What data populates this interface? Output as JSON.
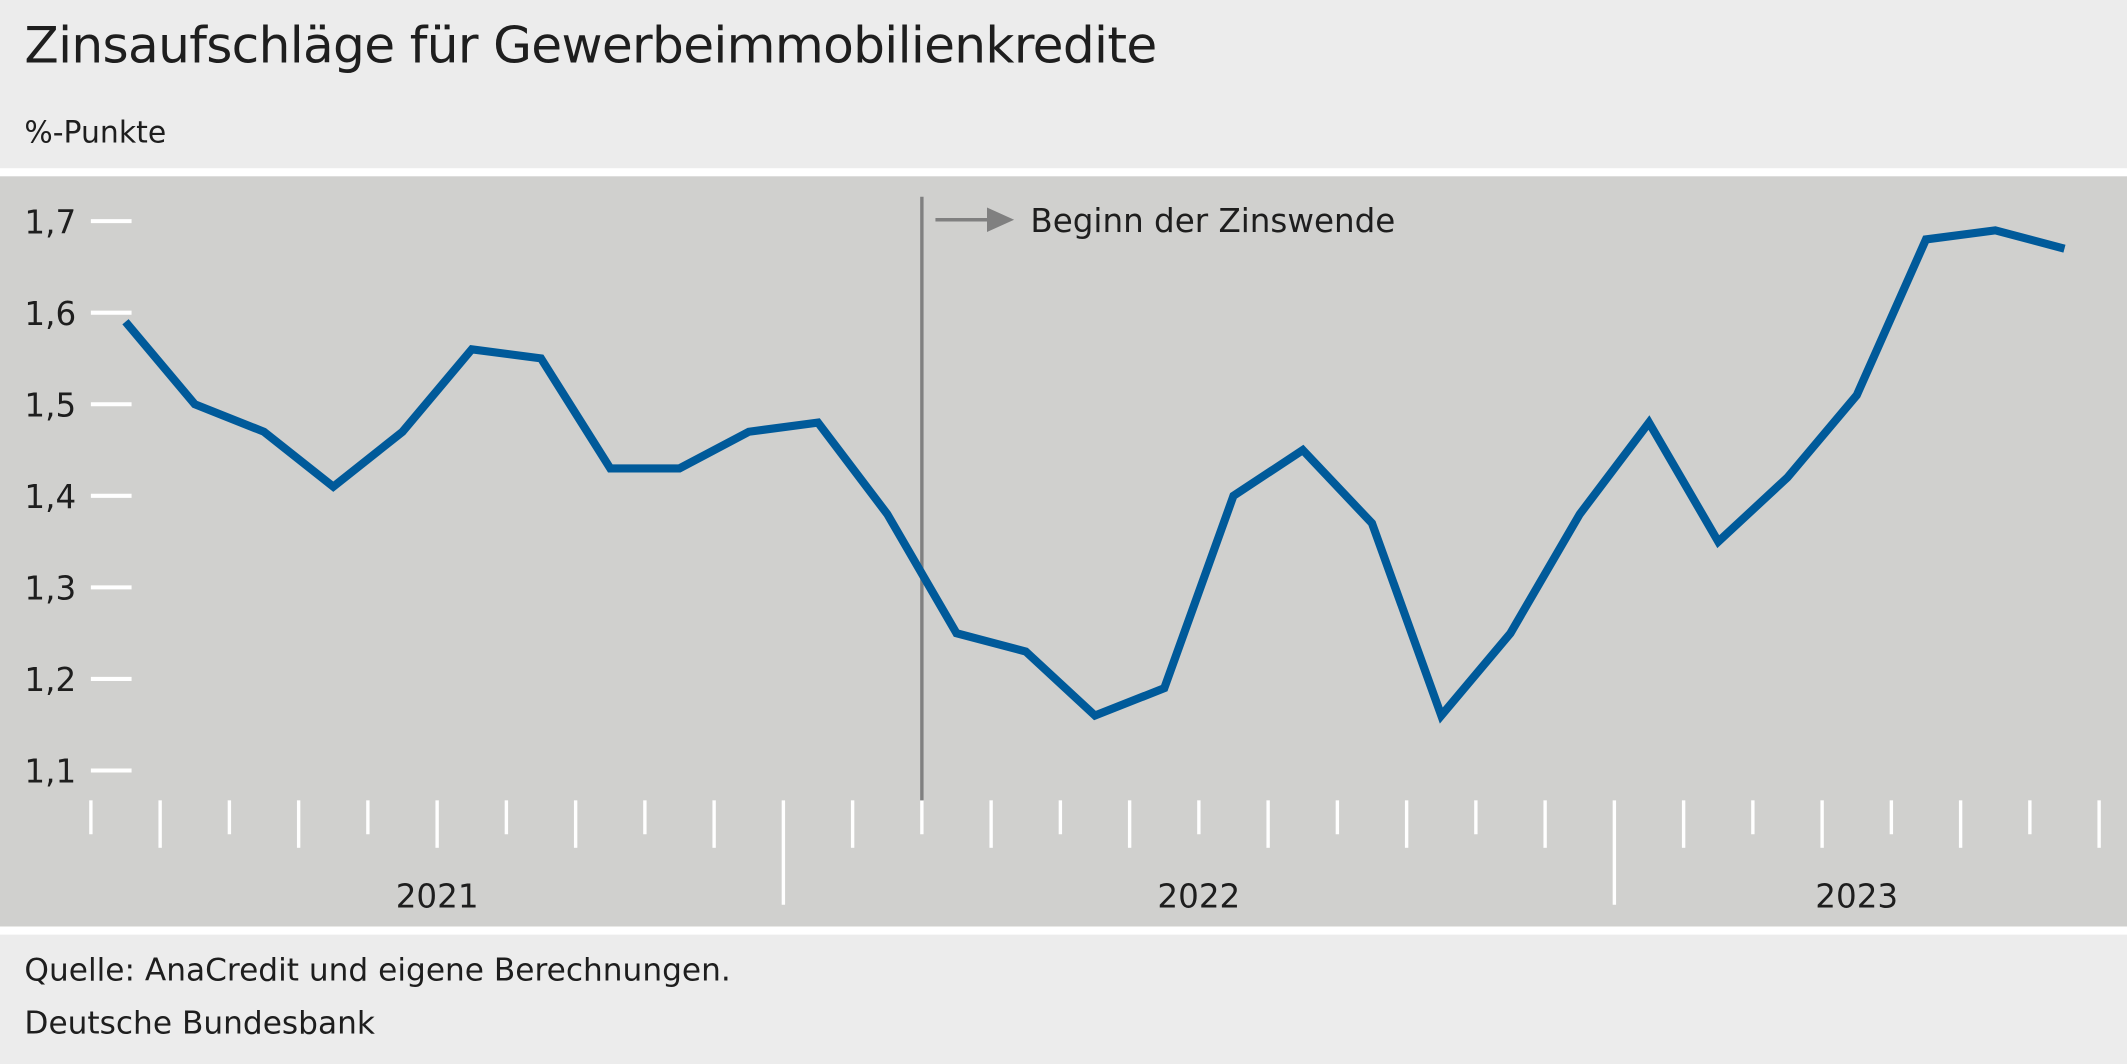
{
  "title": "Zinsaufschläge für Gewerbeimmobilienkredite",
  "subtitle": "%-Punkte",
  "footer": {
    "source": "Quelle: AnaCredit und eigene Berechnungen.",
    "publisher": "Deutsche Bundesbank"
  },
  "colors": {
    "line": "#005a9a",
    "panel": "#d0d0ce",
    "background": "#ececec",
    "marker_line": "#808080"
  },
  "chart_data": {
    "type": "line",
    "title": "Zinsaufschläge für Gewerbeimmobilienkredite",
    "ylabel": "%-Punkte",
    "xlabel": "",
    "ylim": [
      1.1,
      1.7
    ],
    "yticks": [
      "1,1",
      "1,2",
      "1,3",
      "1,4",
      "1,5",
      "1,6",
      "1,7"
    ],
    "year_labels": [
      "2021",
      "2022",
      "2023"
    ],
    "grid": false,
    "x": [
      "2021-03",
      "2021-04",
      "2021-05",
      "2021-06",
      "2021-07",
      "2021-08",
      "2021-09",
      "2021-10",
      "2021-11",
      "2021-12",
      "2022-01",
      "2022-02",
      "2022-03",
      "2022-04",
      "2022-05",
      "2022-06",
      "2022-07",
      "2022-08",
      "2022-09",
      "2022-10",
      "2022-11",
      "2022-12",
      "2023-01",
      "2023-02",
      "2023-03",
      "2023-04",
      "2023-05",
      "2023-06",
      "2023-07"
    ],
    "series": [
      {
        "values": [
          1.59,
          1.5,
          1.47,
          1.41,
          1.47,
          1.56,
          1.55,
          1.43,
          1.43,
          1.47,
          1.48,
          1.38,
          1.25,
          1.23,
          1.16,
          1.19,
          1.4,
          1.45,
          1.37,
          1.16,
          1.25,
          1.38,
          1.48,
          1.35,
          1.42,
          1.51,
          1.68,
          1.69,
          1.67
        ]
      }
    ],
    "annotation": {
      "label": "Beginn der Zinswende",
      "x": "2022-03"
    }
  }
}
